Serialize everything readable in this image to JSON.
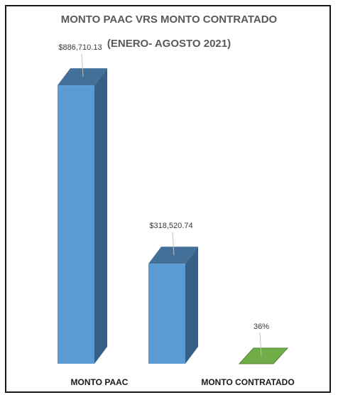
{
  "chart_data": {
    "type": "bar",
    "title": "MONTO PAAC VRS MONTO CONTRATADO",
    "subtitle": "(ENERO- AGOSTO 2021)",
    "categories": [
      "MONTO PAAC",
      "MONTO CONTRATADO"
    ],
    "series": [
      {
        "values": [
          886710.13,
          318520.74
        ],
        "labels": [
          "$886,710.13",
          "$318,520.74"
        ],
        "color": "#5b9bd5"
      },
      {
        "values": [
          0,
          0.36
        ],
        "labels": [
          "",
          "36%"
        ],
        "color": "#70ad47"
      }
    ],
    "ylim": [
      0,
      1000000
    ],
    "grid": false,
    "legend": "none"
  }
}
